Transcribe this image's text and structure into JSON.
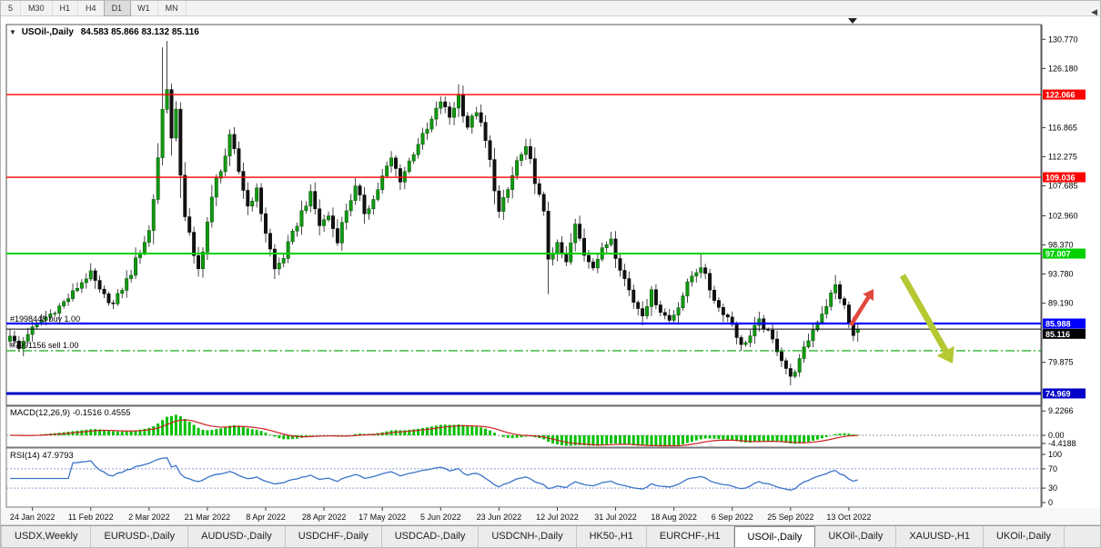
{
  "toolbar": {
    "timeframes": [
      "5",
      "M30",
      "H1",
      "H4",
      "D1",
      "W1",
      "MN"
    ],
    "active": "D1"
  },
  "icons": {
    "collapse": "▼",
    "tab_scroll_left": "◀"
  },
  "chart": {
    "title_symbol": "USOil-,Daily",
    "title_ohlc": "84.583 85.866 83.132 85.116"
  },
  "orders": {
    "buy_label": "#1998448 buy 1.00",
    "sell_label": "#7991156 sell 1.00"
  },
  "indicators": {
    "macd_label": "MACD(12,26,9) -0.1516 0.4555",
    "rsi_label": "RSI(14) 47.9793"
  },
  "tabs": {
    "items": [
      "USDX,Weekly",
      "EURUSD-,Daily",
      "AUDUSD-,Daily",
      "USDCHF-,Daily",
      "USDCAD-,Daily",
      "USDCNH-,Daily",
      "HK50-,H1",
      "EURCHF-,H1",
      "USOil-,Daily",
      "UKOil-,Daily",
      "XAUUSD-,H1",
      "UKOil-,Daily"
    ],
    "active_index": 8
  },
  "chart_data": {
    "type": "candlestick",
    "symbol": "USOil-,Daily",
    "timeframe": "Daily",
    "current_ohlc": {
      "open": 84.583,
      "high": 85.866,
      "low": 83.132,
      "close": 85.116
    },
    "ylim": [
      73.1,
      133.1
    ],
    "x_labels": [
      "24 Jan 2022",
      "11 Feb 2022",
      "2 Mar 2022",
      "21 Mar 2022",
      "8 Apr 2022",
      "28 Apr 2022",
      "17 May 2022",
      "5 Jun 2022",
      "23 Jun 2022",
      "12 Jul 2022",
      "31 Jul 2022",
      "18 Aug 2022",
      "6 Sep 2022",
      "25 Sep 2022",
      "13 Oct 2022"
    ],
    "date_tick_start_index": 5,
    "date_tick_step": 13,
    "y_ticks": [
      {
        "value": 130.77,
        "label": "130.770"
      },
      {
        "value": 126.18,
        "label": "126.180"
      },
      {
        "value": 116.865,
        "label": "116.865"
      },
      {
        "value": 112.275,
        "label": "112.275"
      },
      {
        "value": 107.685,
        "label": "107.685"
      },
      {
        "value": 102.96,
        "label": "102.960"
      },
      {
        "value": 98.37,
        "label": "98.370"
      },
      {
        "value": 93.78,
        "label": "93.780"
      },
      {
        "value": 89.19,
        "label": "89.190"
      },
      {
        "value": 79.875,
        "label": "79.875"
      }
    ],
    "hlines": [
      {
        "value": 122.066,
        "label": "122.066",
        "color": "#FF0000",
        "style": "solid",
        "width": 1.4
      },
      {
        "value": 109.036,
        "label": "109.036",
        "color": "#FF0000",
        "style": "solid",
        "width": 1.4
      },
      {
        "value": 97.007,
        "label": "97.007",
        "color": "#00D000",
        "style": "solid",
        "width": 2
      },
      {
        "value": 85.988,
        "label": "85.988",
        "color": "#0000FF",
        "style": "solid",
        "width": 2.2
      },
      {
        "value": 85.116,
        "label": "85.116",
        "color": "#000000",
        "style": "solid",
        "width": 1
      },
      {
        "value": 81.7,
        "label": null,
        "color": "#00A000",
        "style": "dashdot",
        "width": 1.2
      },
      {
        "value": 74.969,
        "label": "74.969",
        "color": "#0000C8",
        "style": "solid",
        "width": 3
      }
    ],
    "candles": {
      "count": 190,
      "waypoints": [
        [
          0,
          84.0
        ],
        [
          2,
          82.0
        ],
        [
          4,
          84.5
        ],
        [
          7,
          86.5
        ],
        [
          10,
          88.0
        ],
        [
          13,
          90.0
        ],
        [
          16,
          92.5
        ],
        [
          18,
          94.0
        ],
        [
          20,
          91.0
        ],
        [
          23,
          89.0
        ],
        [
          25,
          91.5
        ],
        [
          27,
          94.0
        ],
        [
          29,
          97.5
        ],
        [
          31,
          100.5
        ],
        [
          32,
          106.0
        ],
        [
          33,
          112.5
        ],
        [
          34,
          119.5
        ],
        [
          35,
          123.5
        ],
        [
          36,
          115.0
        ],
        [
          37,
          119.0
        ],
        [
          38,
          110.5
        ],
        [
          39,
          103.5
        ],
        [
          41,
          96.0
        ],
        [
          42,
          94.5
        ],
        [
          44,
          102.0
        ],
        [
          46,
          108.5
        ],
        [
          48,
          112.5
        ],
        [
          49,
          115.5
        ],
        [
          51,
          110.0
        ],
        [
          53,
          104.5
        ],
        [
          55,
          107.0
        ],
        [
          57,
          100.5
        ],
        [
          58,
          97.5
        ],
        [
          59,
          94.5
        ],
        [
          61,
          96.5
        ],
        [
          63,
          100.0
        ],
        [
          65,
          103.5
        ],
        [
          67,
          106.5
        ],
        [
          69,
          101.5
        ],
        [
          71,
          103.0
        ],
        [
          73,
          99.0
        ],
        [
          75,
          104.0
        ],
        [
          77,
          107.5
        ],
        [
          79,
          103.5
        ],
        [
          81,
          105.5
        ],
        [
          83,
          109.0
        ],
        [
          85,
          112.0
        ],
        [
          87,
          108.5
        ],
        [
          89,
          111.5
        ],
        [
          91,
          114.5
        ],
        [
          93,
          116.5
        ],
        [
          96,
          121.0
        ],
        [
          98,
          118.5
        ],
        [
          100,
          122.0
        ],
        [
          102,
          117.0
        ],
        [
          104,
          119.5
        ],
        [
          106,
          114.5
        ],
        [
          108,
          108.0
        ],
        [
          109,
          103.5
        ],
        [
          111,
          107.0
        ],
        [
          113,
          111.5
        ],
        [
          115,
          113.5
        ],
        [
          117,
          109.0
        ],
        [
          119,
          102.5
        ],
        [
          120,
          96.5
        ],
        [
          122,
          98.5
        ],
        [
          124,
          95.5
        ],
        [
          126,
          101.5
        ],
        [
          128,
          97.0
        ],
        [
          130,
          95.0
        ],
        [
          132,
          97.5
        ],
        [
          134,
          99.5
        ],
        [
          135,
          97.0
        ],
        [
          137,
          93.0
        ],
        [
          139,
          89.5
        ],
        [
          141,
          87.5
        ],
        [
          143,
          91.0
        ],
        [
          145,
          88.0
        ],
        [
          147,
          86.5
        ],
        [
          148,
          87.5
        ],
        [
          150,
          90.5
        ],
        [
          152,
          93.5
        ],
        [
          154,
          95.0
        ],
        [
          156,
          91.5
        ],
        [
          158,
          88.5
        ],
        [
          160,
          87.0
        ],
        [
          161,
          86.0
        ],
        [
          163,
          82.5
        ],
        [
          165,
          84.0
        ],
        [
          167,
          86.5
        ],
        [
          169,
          84.5
        ],
        [
          171,
          82.0
        ],
        [
          173,
          79.0
        ],
        [
          174,
          77.5
        ],
        [
          176,
          80.0
        ],
        [
          178,
          83.5
        ],
        [
          180,
          86.5
        ],
        [
          182,
          89.0
        ],
        [
          184,
          92.0
        ],
        [
          186,
          88.5
        ],
        [
          187,
          86.0
        ],
        [
          188,
          84.0
        ],
        [
          189,
          85.116
        ]
      ],
      "spikes": {
        "34": {
          "high": 129.5
        },
        "35": {
          "high": 130.5
        },
        "42": {
          "low": 93.4
        },
        "49": {
          "high": 116.6
        },
        "59": {
          "low": 93.0
        },
        "100": {
          "high": 123.7
        },
        "120": {
          "low": 90.6
        },
        "141": {
          "low": 85.7
        },
        "154": {
          "high": 97.1
        },
        "174": {
          "low": 76.25
        },
        "184": {
          "high": 93.64
        },
        "189": {
          "open": 84.583,
          "high": 85.866,
          "low": 83.132
        }
      }
    },
    "macd": {
      "params": "12,26,9",
      "main_value": -0.1516,
      "signal_value": 0.4555,
      "axis": [
        {
          "value": 9.2266,
          "label": "9.2266"
        },
        {
          "value": 0,
          "label": "0.00"
        },
        {
          "value": -4.4188,
          "label": "-4.4188"
        }
      ],
      "histogram_color": "#00C000",
      "signal_color": "#CC2222"
    },
    "rsi": {
      "period": 14,
      "current": 47.9793,
      "levels": [
        100,
        70,
        30,
        0
      ],
      "line_color": "#3b73c8"
    },
    "annotations": [
      {
        "type": "arrow",
        "direction": "up-right",
        "color": "#e2483d"
      },
      {
        "type": "arrow",
        "direction": "down-right",
        "color": "#b6c832"
      }
    ]
  }
}
